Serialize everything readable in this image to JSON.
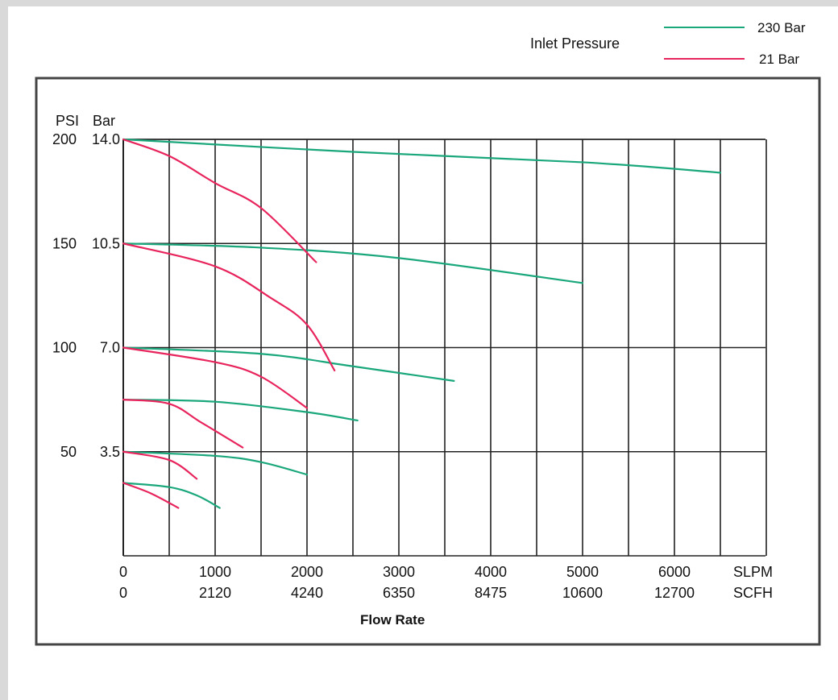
{
  "chart_data": {
    "type": "line",
    "title": "",
    "xlabel": "Flow Rate",
    "x_unit_labels": [
      "SLPM",
      "SCFH"
    ],
    "x_ticks_slpm": [
      "0",
      "1000",
      "2000",
      "3000",
      "4000",
      "5000",
      "6000"
    ],
    "x_ticks_scfh": [
      "0",
      "2120",
      "4240",
      "6350",
      "8475",
      "10600",
      "12700"
    ],
    "y_unit_labels": [
      "PSI",
      "Bar"
    ],
    "y_ticks": [
      {
        "psi": "200",
        "bar": "14.0",
        "value_psi": 200
      },
      {
        "psi": "150",
        "bar": "10.5",
        "value_psi": 150
      },
      {
        "psi": "100",
        "bar": "7.0",
        "value_psi": 100
      },
      {
        "psi": "50",
        "bar": "3.5",
        "value_psi": 50
      }
    ],
    "xlim": [
      0,
      7000
    ],
    "ylim_psi": [
      0,
      200
    ],
    "grid": true,
    "legend": {
      "title": "Inlet Pressure",
      "position": "top-right",
      "entries": [
        {
          "label": "230 Bar",
          "color": "#1aa77b"
        },
        {
          "label": "21 Bar",
          "color": "#e8245c"
        }
      ]
    },
    "series": [
      {
        "legend_ref": "230 Bar",
        "color": "#1aa77b",
        "points": [
          [
            0,
            200
          ],
          [
            2500,
            194
          ],
          [
            5000,
            189
          ],
          [
            6500,
            184
          ]
        ]
      },
      {
        "legend_ref": "230 Bar",
        "color": "#1aa77b",
        "points": [
          [
            0,
            150
          ],
          [
            1500,
            148
          ],
          [
            3000,
            143
          ],
          [
            5000,
            131
          ]
        ]
      },
      {
        "legend_ref": "230 Bar",
        "color": "#1aa77b",
        "points": [
          [
            0,
            100
          ],
          [
            1500,
            97
          ],
          [
            2500,
            91
          ],
          [
            3600,
            84
          ]
        ]
      },
      {
        "legend_ref": "230 Bar",
        "color": "#1aa77b",
        "points": [
          [
            0,
            75
          ],
          [
            1000,
            74
          ],
          [
            2000,
            69
          ],
          [
            2550,
            65
          ]
        ]
      },
      {
        "legend_ref": "230 Bar",
        "color": "#1aa77b",
        "points": [
          [
            0,
            50
          ],
          [
            1000,
            48
          ],
          [
            1500,
            45
          ],
          [
            2000,
            39
          ]
        ]
      },
      {
        "legend_ref": "230 Bar",
        "color": "#1aa77b",
        "points": [
          [
            0,
            35
          ],
          [
            500,
            33
          ],
          [
            800,
            29
          ],
          [
            1050,
            23
          ]
        ]
      },
      {
        "legend_ref": "21 Bar",
        "color": "#e8245c",
        "points": [
          [
            0,
            200
          ],
          [
            500,
            192
          ],
          [
            1000,
            179
          ],
          [
            1500,
            167
          ],
          [
            2100,
            141
          ]
        ]
      },
      {
        "legend_ref": "21 Bar",
        "color": "#e8245c",
        "points": [
          [
            0,
            150
          ],
          [
            1000,
            139
          ],
          [
            1600,
            124
          ],
          [
            2000,
            111
          ],
          [
            2300,
            89
          ]
        ]
      },
      {
        "legend_ref": "21 Bar",
        "color": "#e8245c",
        "points": [
          [
            0,
            100
          ],
          [
            1000,
            93
          ],
          [
            1500,
            86
          ],
          [
            2000,
            71
          ]
        ]
      },
      {
        "legend_ref": "21 Bar",
        "color": "#e8245c",
        "points": [
          [
            0,
            75
          ],
          [
            500,
            73
          ],
          [
            850,
            64
          ],
          [
            1300,
            52
          ]
        ]
      },
      {
        "legend_ref": "21 Bar",
        "color": "#e8245c",
        "points": [
          [
            0,
            50
          ],
          [
            500,
            46
          ],
          [
            800,
            37
          ]
        ]
      },
      {
        "legend_ref": "21 Bar",
        "color": "#e8245c",
        "points": [
          [
            0,
            35
          ],
          [
            300,
            30
          ],
          [
            600,
            23
          ]
        ]
      }
    ]
  }
}
